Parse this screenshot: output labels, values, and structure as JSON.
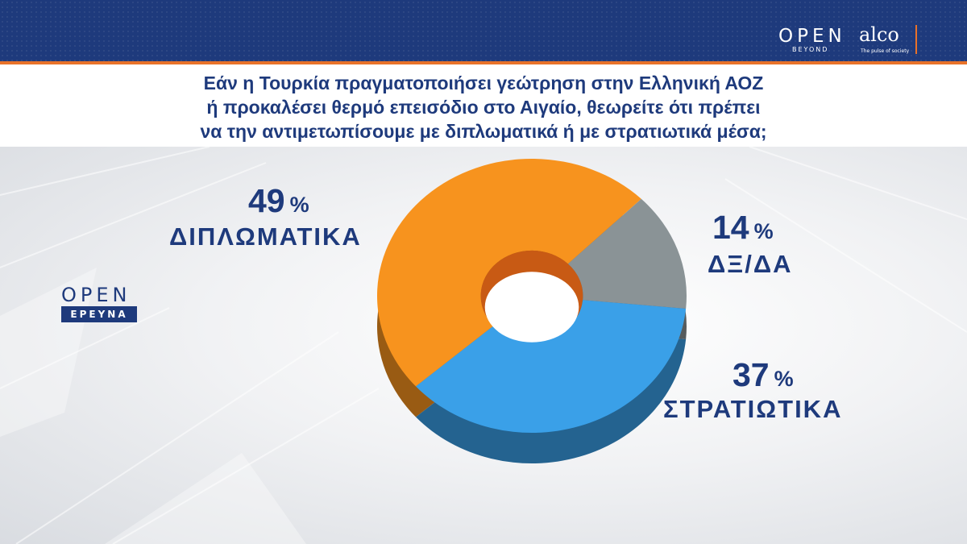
{
  "header": {
    "brand_open": "OPEN",
    "brand_beyond": "BEYOND",
    "brand_alco": "alco",
    "brand_tagline": "The pulse of society"
  },
  "title": {
    "lines": [
      "Εάν η Τουρκία πραγματοποιήσει γεώτρηση στην Ελληνική ΑΟΖ",
      "ή προκαλέσει θερμό επεισόδιο στο Αιγαίο, θεωρείτε ότι πρέπει",
      "να την αντιμετωπίσουμε με διπλωματικά ή με στρατιωτικά μέσα;"
    ]
  },
  "side_logo": {
    "word": "OPEN",
    "box": "ΕΡΕΥΝΑ"
  },
  "colors": {
    "brand_blue": "#1e3a7c",
    "accent_orange": "#e8722a"
  },
  "chart_data": {
    "type": "pie",
    "style": "3d-donut",
    "unit": "%",
    "slices": [
      {
        "label": "ΔΙΠΛΩΜΑΤΙΚΑ",
        "value": 49,
        "color": "#f7931e"
      },
      {
        "label": "ΔΞ/ΔΑ",
        "value": 14,
        "color": "#8a9396"
      },
      {
        "label": "ΣΤΡΑΤΙΩΤΙΚΑ",
        "value": 37,
        "color": "#3aa0e8"
      }
    ]
  }
}
